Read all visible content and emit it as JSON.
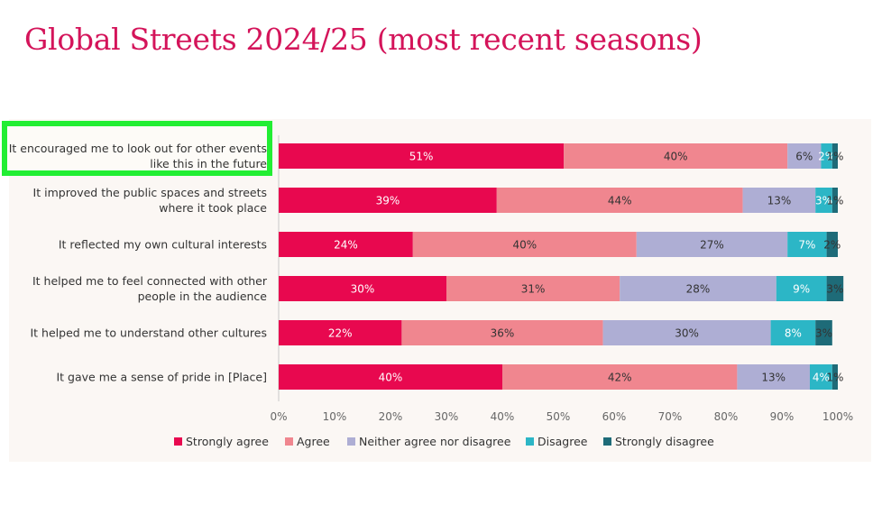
{
  "title": "Global Streets 2024/25 (most recent seasons)",
  "colors": {
    "title": "#d4145a",
    "strongly_agree": "#e8084f",
    "agree": "#f0868f",
    "neither": "#aeaed4",
    "disagree": "#2cb6c6",
    "strongly_disagree": "#1e6b78",
    "highlight": "#22ee33"
  },
  "chart_data": {
    "type": "bar",
    "orientation": "horizontal",
    "stacked": true,
    "normalized": true,
    "categories": [
      [
        "It encouraged me to look out for other events",
        "like this in the future"
      ],
      [
        "It improved the public spaces and streets",
        "where it took place"
      ],
      [
        "It reflected my own cultural interests"
      ],
      [
        "It helped me to feel connected with other",
        "people in the audience"
      ],
      [
        "It helped me to understand other cultures"
      ],
      [
        "It gave me a sense of pride in [Place]"
      ]
    ],
    "series": [
      {
        "name": "Strongly agree",
        "color": "#e8084f",
        "label_color": "#ffffff",
        "values": [
          51,
          39,
          24,
          30,
          22,
          40
        ],
        "labels": [
          "51%",
          "39%",
          "24%",
          "30%",
          "22%",
          "40%"
        ]
      },
      {
        "name": "Agree",
        "color": "#f0868f",
        "label_color": "#333333",
        "values": [
          40,
          44,
          40,
          31,
          36,
          42
        ],
        "labels": [
          "40%",
          "44%",
          "40%",
          "31%",
          "36%",
          "42%"
        ]
      },
      {
        "name": "Neither agree nor disagree",
        "color": "#aeaed4",
        "label_color": "#333333",
        "values": [
          6,
          13,
          27,
          28,
          30,
          13
        ],
        "labels": [
          "6%",
          "13%",
          "27%",
          "28%",
          "30%",
          "13%"
        ]
      },
      {
        "name": "Disagree",
        "color": "#2cb6c6",
        "label_color": "#ffffff",
        "values": [
          2,
          3,
          7,
          9,
          8,
          4
        ],
        "labels": [
          "2%",
          "3%",
          "7%",
          "9%",
          "8%",
          "4%"
        ]
      },
      {
        "name": "Strongly disagree",
        "color": "#1e6b78",
        "label_color": "#333333",
        "values": [
          1,
          1,
          2,
          3,
          3,
          1
        ],
        "labels": [
          "1%",
          "1%",
          "2%",
          "3%",
          "3%",
          "1%"
        ]
      }
    ],
    "xlim": [
      0,
      100
    ],
    "x_ticks": [
      "0%",
      "10%",
      "20%",
      "30%",
      "40%",
      "50%",
      "60%",
      "70%",
      "80%",
      "90%",
      "100%"
    ],
    "legend": "bottom",
    "highlighted_category": 0,
    "grid": false
  }
}
